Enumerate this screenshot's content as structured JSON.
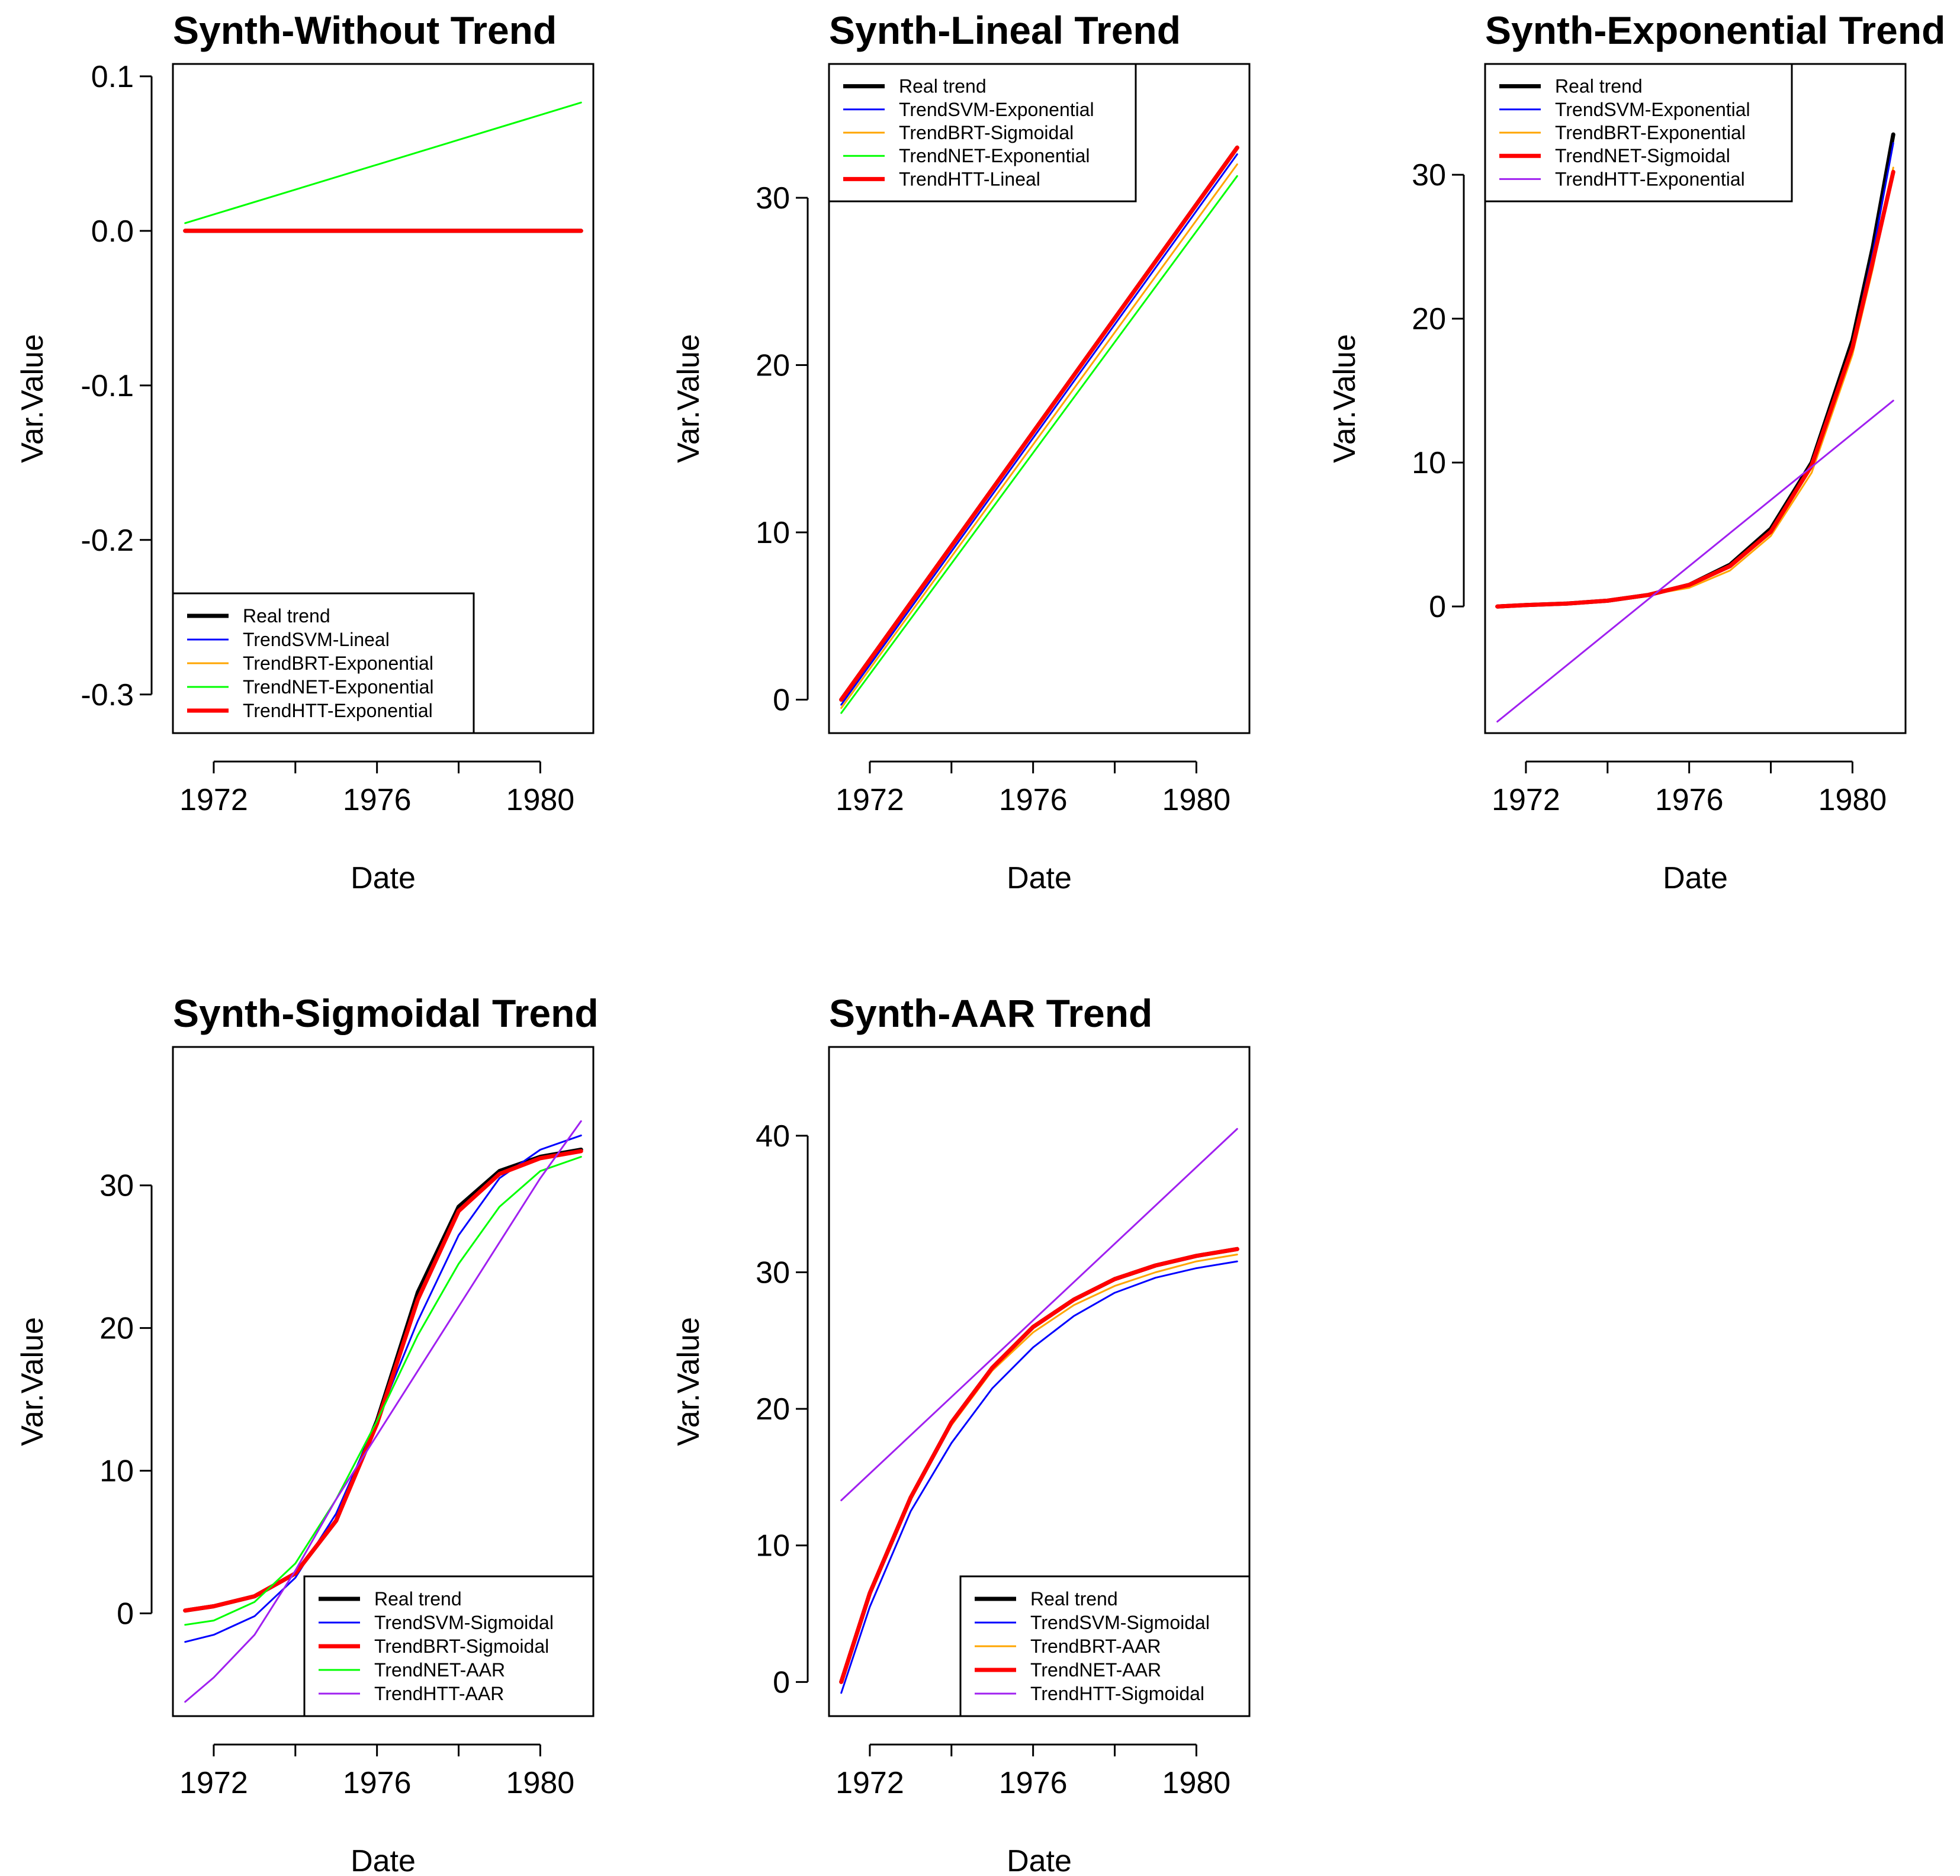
{
  "chart_data": [
    {
      "type": "line",
      "title": "Synth-Without Trend",
      "xlabel": "Date",
      "ylabel": "Var.Value",
      "xlim": [
        1971.0,
        1981.3
      ],
      "ylim": [
        -0.325,
        0.108
      ],
      "x_ticks": [
        1972,
        1974,
        1976,
        1978,
        1980
      ],
      "x_tick_labels": [
        "1972",
        "",
        "1976",
        "",
        "1980"
      ],
      "y_ticks": [
        0.1,
        0.0,
        -0.1,
        -0.2,
        -0.3
      ],
      "y_tick_labels": [
        "0.1",
        "0.0",
        "-0.1",
        "-0.2",
        "-0.3"
      ],
      "legend": {
        "position": "bottom-left"
      },
      "series": [
        {
          "name": "Real trend",
          "color": "#000000",
          "width": "thick",
          "x": [
            1971.3,
            1981.0
          ],
          "y": [
            0.0,
            0.0
          ]
        },
        {
          "name": "TrendSVM-Lineal",
          "color": "#0000ff",
          "width": "thin",
          "x": [
            1971.3,
            1981.0
          ],
          "y": [
            0.0,
            0.0
          ]
        },
        {
          "name": "TrendBRT-Exponential",
          "color": "#ffa500",
          "width": "thin",
          "x": [
            1971.3,
            1981.0
          ],
          "y": [
            0.0,
            0.0
          ]
        },
        {
          "name": "TrendNET-Exponential",
          "color": "#00ff00",
          "width": "thin",
          "x": [
            1971.3,
            1981.0
          ],
          "y": [
            0.005,
            0.083
          ]
        },
        {
          "name": "TrendHTT-Exponential",
          "color": "#ff0000",
          "width": "thick",
          "x": [
            1971.3,
            1981.0
          ],
          "y": [
            0.0,
            0.0
          ]
        }
      ]
    },
    {
      "type": "line",
      "title": "Synth-Lineal Trend",
      "xlabel": "Date",
      "ylabel": "Var.Value",
      "xlim": [
        1971.0,
        1981.3
      ],
      "ylim": [
        -2.0,
        38.0
      ],
      "x_ticks": [
        1972,
        1974,
        1976,
        1978,
        1980
      ],
      "x_tick_labels": [
        "1972",
        "",
        "1976",
        "",
        "1980"
      ],
      "y_ticks": [
        0,
        10,
        20,
        30
      ],
      "y_tick_labels": [
        "0",
        "10",
        "20",
        "30"
      ],
      "legend": {
        "position": "top-left"
      },
      "series": [
        {
          "name": "Real trend",
          "color": "#000000",
          "width": "thick",
          "x": [
            1971.3,
            1981.0
          ],
          "y": [
            0.0,
            33.0
          ]
        },
        {
          "name": "TrendSVM-Exponential",
          "color": "#0000ff",
          "width": "thin",
          "x": [
            1971.3,
            1981.0
          ],
          "y": [
            -0.3,
            32.6
          ]
        },
        {
          "name": "TrendBRT-Sigmoidal",
          "color": "#ffa500",
          "width": "thin",
          "x": [
            1971.3,
            1981.0
          ],
          "y": [
            -0.5,
            32.0
          ]
        },
        {
          "name": "TrendNET-Exponential",
          "color": "#00ff00",
          "width": "thin",
          "x": [
            1971.3,
            1981.0
          ],
          "y": [
            -0.8,
            31.3
          ]
        },
        {
          "name": "TrendHTT-Lineal",
          "color": "#ff0000",
          "width": "thick",
          "x": [
            1971.3,
            1981.0
          ],
          "y": [
            0.0,
            33.0
          ]
        }
      ]
    },
    {
      "type": "line",
      "title": "Synth-Exponential Trend",
      "xlabel": "Date",
      "ylabel": "Var.Value",
      "xlim": [
        1971.0,
        1981.3
      ],
      "ylim": [
        -8.8,
        37.7
      ],
      "x_ticks": [
        1972,
        1974,
        1976,
        1978,
        1980
      ],
      "x_tick_labels": [
        "1972",
        "",
        "1976",
        "",
        "1980"
      ],
      "y_ticks": [
        0,
        10,
        20,
        30
      ],
      "y_tick_labels": [
        "0",
        "10",
        "20",
        "30"
      ],
      "legend": {
        "position": "top-left"
      },
      "series": [
        {
          "name": "Real trend",
          "color": "#000000",
          "width": "thick",
          "x": [
            1971.3,
            1972.0,
            1973.0,
            1974.0,
            1975.0,
            1976.0,
            1977.0,
            1978.0,
            1979.0,
            1980.0,
            1980.5,
            1981.0
          ],
          "y": [
            0.0,
            0.1,
            0.2,
            0.4,
            0.8,
            1.5,
            2.9,
            5.4,
            10.0,
            18.5,
            25.0,
            32.8
          ]
        },
        {
          "name": "TrendSVM-Exponential",
          "color": "#0000ff",
          "width": "thin",
          "x": [
            1971.3,
            1972.0,
            1973.0,
            1974.0,
            1975.0,
            1976.0,
            1977.0,
            1978.0,
            1979.0,
            1980.0,
            1980.5,
            1981.0
          ],
          "y": [
            0.0,
            0.1,
            0.2,
            0.4,
            0.8,
            1.4,
            2.8,
            5.3,
            9.8,
            18.2,
            24.6,
            32.2
          ]
        },
        {
          "name": "TrendBRT-Exponential",
          "color": "#ffa500",
          "width": "thin",
          "x": [
            1971.3,
            1972.0,
            1973.0,
            1974.0,
            1975.0,
            1976.0,
            1977.0,
            1978.0,
            1979.0,
            1980.0,
            1980.5,
            1981.0
          ],
          "y": [
            0.0,
            0.1,
            0.2,
            0.4,
            0.8,
            1.3,
            2.5,
            4.9,
            9.3,
            17.5,
            23.5,
            30.5
          ]
        },
        {
          "name": "TrendNET-Sigmoidal",
          "color": "#ff0000",
          "width": "thick",
          "x": [
            1971.3,
            1972.0,
            1973.0,
            1974.0,
            1975.0,
            1976.0,
            1977.0,
            1978.0,
            1979.0,
            1980.0,
            1980.5,
            1981.0
          ],
          "y": [
            0.0,
            0.1,
            0.2,
            0.4,
            0.8,
            1.5,
            2.8,
            5.2,
            9.8,
            18.0,
            24.0,
            30.2
          ]
        },
        {
          "name": "TrendHTT-Exponential",
          "color": "#a020f0",
          "width": "thin",
          "x": [
            1971.3,
            1981.0
          ],
          "y": [
            -8.0,
            14.3
          ]
        }
      ]
    },
    {
      "type": "line",
      "title": "Synth-Sigmoidal Trend",
      "xlabel": "Date",
      "ylabel": "Var.Value",
      "xlim": [
        1971.0,
        1981.3
      ],
      "ylim": [
        -7.2,
        39.7
      ],
      "x_ticks": [
        1972,
        1974,
        1976,
        1978,
        1980
      ],
      "x_tick_labels": [
        "1972",
        "",
        "1976",
        "",
        "1980"
      ],
      "y_ticks": [
        0,
        10,
        20,
        30
      ],
      "y_tick_labels": [
        "0",
        "10",
        "20",
        "30"
      ],
      "legend": {
        "position": "bottom-right"
      },
      "series": [
        {
          "name": "Real trend",
          "color": "#000000",
          "width": "thick",
          "x": [
            1971.3,
            1972.0,
            1973.0,
            1974.0,
            1975.0,
            1976.0,
            1977.0,
            1978.0,
            1979.0,
            1980.0,
            1981.0
          ],
          "y": [
            0.2,
            0.5,
            1.2,
            2.8,
            6.5,
            13.5,
            22.5,
            28.5,
            31.0,
            32.0,
            32.5
          ]
        },
        {
          "name": "TrendSVM-Sigmoidal",
          "color": "#0000ff",
          "width": "thin",
          "x": [
            1971.3,
            1972.0,
            1973.0,
            1974.0,
            1975.0,
            1976.0,
            1977.0,
            1978.0,
            1979.0,
            1980.0,
            1981.0
          ],
          "y": [
            -2.0,
            -1.5,
            -0.2,
            2.5,
            7.0,
            13.5,
            20.5,
            26.5,
            30.5,
            32.5,
            33.5
          ]
        },
        {
          "name": "TrendBRT-Sigmoidal",
          "color": "#ff0000",
          "width": "thick",
          "x": [
            1971.3,
            1972.0,
            1973.0,
            1974.0,
            1975.0,
            1976.0,
            1977.0,
            1978.0,
            1979.0,
            1980.0,
            1981.0
          ],
          "y": [
            0.2,
            0.5,
            1.2,
            2.8,
            6.5,
            13.3,
            22.0,
            28.2,
            30.8,
            31.9,
            32.4
          ]
        },
        {
          "name": "TrendNET-AAR",
          "color": "#00ff00",
          "width": "thin",
          "x": [
            1971.3,
            1972.0,
            1973.0,
            1974.0,
            1975.0,
            1976.0,
            1977.0,
            1978.0,
            1979.0,
            1980.0,
            1981.0
          ],
          "y": [
            -0.8,
            -0.5,
            0.8,
            3.5,
            8.0,
            13.5,
            19.5,
            24.5,
            28.5,
            31.0,
            32.0
          ]
        },
        {
          "name": "TrendHTT-AAR",
          "color": "#a020f0",
          "width": "thin",
          "x": [
            1971.3,
            1972.0,
            1973.0,
            1974.0,
            1975.0,
            1976.0,
            1977.0,
            1978.0,
            1979.0,
            1980.0,
            1981.0
          ],
          "y": [
            -6.2,
            -4.5,
            -1.5,
            3.0,
            8.0,
            12.5,
            17.0,
            21.5,
            26.0,
            30.5,
            34.5
          ]
        }
      ]
    },
    {
      "type": "line",
      "title": "Synth-AAR Trend",
      "xlabel": "Date",
      "ylabel": "Var.Value",
      "xlim": [
        1971.0,
        1981.3
      ],
      "ylim": [
        -2.5,
        46.5
      ],
      "x_ticks": [
        1972,
        1974,
        1976,
        1978,
        1980
      ],
      "x_tick_labels": [
        "1972",
        "",
        "1976",
        "",
        "1980"
      ],
      "y_ticks": [
        0,
        10,
        20,
        30,
        40
      ],
      "y_tick_labels": [
        "0",
        "10",
        "20",
        "30",
        "40"
      ],
      "legend": {
        "position": "bottom-right"
      },
      "series": [
        {
          "name": "Real trend",
          "color": "#000000",
          "width": "thick",
          "x": [
            1971.3,
            1972.0,
            1973.0,
            1974.0,
            1975.0,
            1976.0,
            1977.0,
            1978.0,
            1979.0,
            1980.0,
            1981.0
          ],
          "y": [
            0.0,
            6.5,
            13.5,
            19.0,
            23.0,
            26.0,
            28.0,
            29.5,
            30.5,
            31.2,
            31.7
          ]
        },
        {
          "name": "TrendSVM-Sigmoidal",
          "color": "#0000ff",
          "width": "thin",
          "x": [
            1971.3,
            1972.0,
            1973.0,
            1974.0,
            1975.0,
            1976.0,
            1977.0,
            1978.0,
            1979.0,
            1980.0,
            1981.0
          ],
          "y": [
            -0.8,
            5.5,
            12.5,
            17.5,
            21.5,
            24.5,
            26.8,
            28.5,
            29.6,
            30.3,
            30.8
          ]
        },
        {
          "name": "TrendBRT-AAR",
          "color": "#ffa500",
          "width": "thin",
          "x": [
            1971.3,
            1972.0,
            1973.0,
            1974.0,
            1975.0,
            1976.0,
            1977.0,
            1978.0,
            1979.0,
            1980.0,
            1981.0
          ],
          "y": [
            0.0,
            6.5,
            13.5,
            18.8,
            22.8,
            25.6,
            27.6,
            29.0,
            30.0,
            30.8,
            31.3
          ]
        },
        {
          "name": "TrendNET-AAR",
          "color": "#ff0000",
          "width": "thick",
          "x": [
            1971.3,
            1972.0,
            1973.0,
            1974.0,
            1975.0,
            1976.0,
            1977.0,
            1978.0,
            1979.0,
            1980.0,
            1981.0
          ],
          "y": [
            0.0,
            6.5,
            13.5,
            19.0,
            23.0,
            26.0,
            28.0,
            29.5,
            30.5,
            31.2,
            31.7
          ]
        },
        {
          "name": "TrendHTT-Sigmoidal",
          "color": "#a020f0",
          "width": "thin",
          "x": [
            1971.3,
            1981.0
          ],
          "y": [
            13.3,
            40.5
          ]
        }
      ]
    }
  ]
}
